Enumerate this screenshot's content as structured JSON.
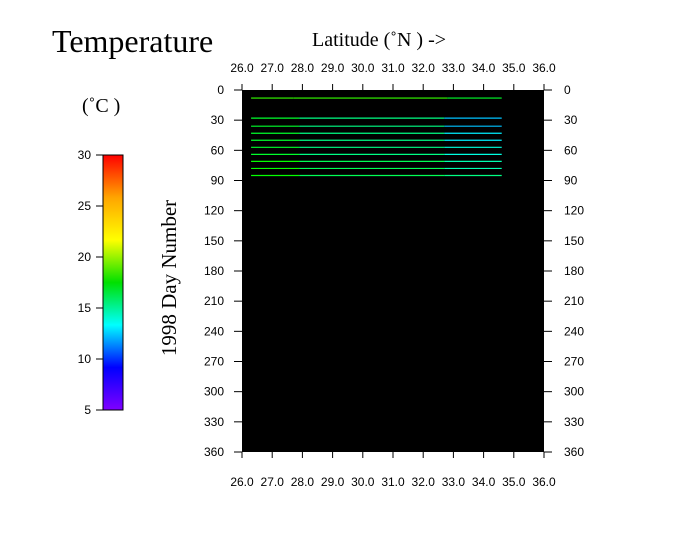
{
  "chart_data": {
    "type": "heatmap",
    "title": "Temperature",
    "xlabel": "Latitude  (˚N )  ->",
    "ylabel": "1998   Day  Number",
    "xlim": [
      26.0,
      36.0
    ],
    "ylim": [
      0,
      360
    ],
    "x_ticks": [
      "26.0",
      "27.0",
      "28.0",
      "29.0",
      "30.0",
      "31.0",
      "32.0",
      "33.0",
      "34.0",
      "35.0",
      "36.0"
    ],
    "y_ticks": [
      "0",
      "30",
      "60",
      "90",
      "120",
      "150",
      "180",
      "210",
      "240",
      "270",
      "300",
      "330",
      "360"
    ],
    "background": "#000000",
    "colorbar": {
      "label": "(˚C )",
      "range": [
        5,
        30
      ],
      "ticks": [
        "30",
        "25",
        "20",
        "15",
        "10",
        "5"
      ],
      "colors": [
        "#ff0000",
        "#ffa500",
        "#ffff00",
        "#00e000",
        "#00ffff",
        "#0000ff",
        "#8000ff"
      ]
    },
    "rows": [
      {
        "day": 8,
        "segments": [
          {
            "x0": 26.3,
            "x1": 27.7,
            "temp": 20
          },
          {
            "x0": 27.7,
            "x1": 32.8,
            "temp": 20
          },
          {
            "x0": 32.8,
            "x1": 34.6,
            "temp": 18
          }
        ]
      },
      {
        "day": 28,
        "segments": [
          {
            "x0": 26.3,
            "x1": 27.9,
            "temp": 18
          },
          {
            "x0": 27.9,
            "x1": 32.7,
            "temp": 16
          },
          {
            "x0": 32.7,
            "x1": 34.6,
            "temp": 12
          }
        ]
      },
      {
        "day": 36,
        "segments": [
          {
            "x0": 26.3,
            "x1": 27.9,
            "temp": 18
          },
          {
            "x0": 27.9,
            "x1": 32.7,
            "temp": 16
          },
          {
            "x0": 32.7,
            "x1": 34.6,
            "temp": 12
          }
        ]
      },
      {
        "day": 43,
        "segments": [
          {
            "x0": 26.3,
            "x1": 27.9,
            "temp": 18
          },
          {
            "x0": 27.9,
            "x1": 32.7,
            "temp": 16
          },
          {
            "x0": 32.7,
            "x1": 34.6,
            "temp": 13
          }
        ]
      },
      {
        "day": 50,
        "segments": [
          {
            "x0": 26.3,
            "x1": 27.9,
            "temp": 18
          },
          {
            "x0": 27.9,
            "x1": 32.7,
            "temp": 16
          },
          {
            "x0": 32.7,
            "x1": 34.6,
            "temp": 13
          }
        ]
      },
      {
        "day": 57,
        "segments": [
          {
            "x0": 26.3,
            "x1": 27.9,
            "temp": 18
          },
          {
            "x0": 27.9,
            "x1": 32.7,
            "temp": 16
          },
          {
            "x0": 32.7,
            "x1": 34.6,
            "temp": 14
          }
        ]
      },
      {
        "day": 64,
        "segments": [
          {
            "x0": 26.3,
            "x1": 27.9,
            "temp": 18
          },
          {
            "x0": 27.9,
            "x1": 32.7,
            "temp": 16
          },
          {
            "x0": 32.7,
            "x1": 34.6,
            "temp": 14
          }
        ]
      },
      {
        "day": 71,
        "segments": [
          {
            "x0": 26.3,
            "x1": 27.9,
            "temp": 19
          },
          {
            "x0": 27.9,
            "x1": 32.7,
            "temp": 17
          },
          {
            "x0": 32.7,
            "x1": 34.6,
            "temp": 15
          }
        ]
      },
      {
        "day": 78,
        "segments": [
          {
            "x0": 26.3,
            "x1": 27.9,
            "temp": 19
          },
          {
            "x0": 27.9,
            "x1": 32.7,
            "temp": 17
          },
          {
            "x0": 32.7,
            "x1": 34.6,
            "temp": 15
          }
        ]
      },
      {
        "day": 85,
        "segments": [
          {
            "x0": 26.3,
            "x1": 27.9,
            "temp": 19
          },
          {
            "x0": 27.9,
            "x1": 32.7,
            "temp": 17
          },
          {
            "x0": 32.7,
            "x1": 34.6,
            "temp": 16
          }
        ]
      }
    ]
  }
}
